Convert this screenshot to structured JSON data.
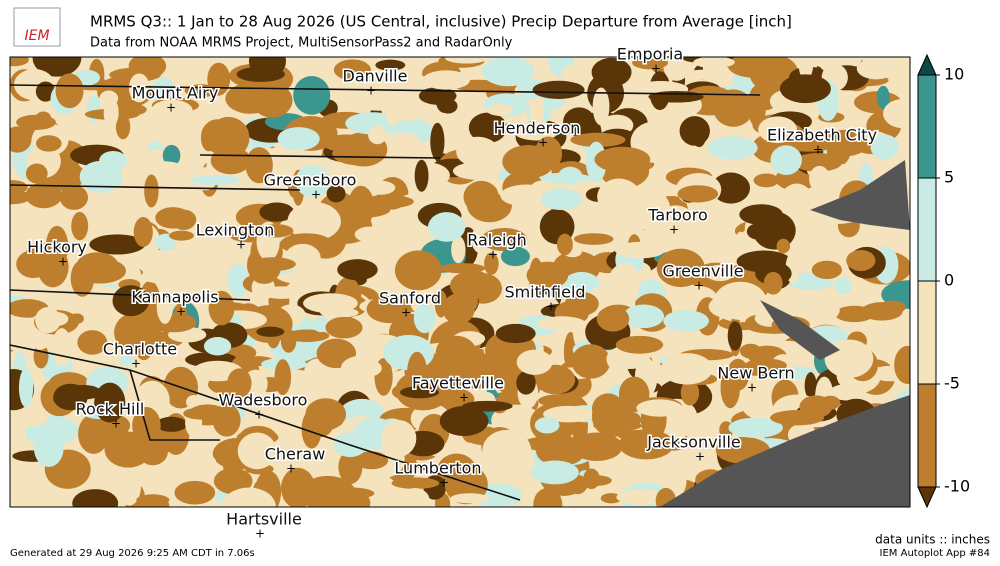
{
  "header": {
    "title": "MRMS Q3:: 1 Jan to 28 Aug 2026 (US Central, inclusive) Precip Departure from Average [inch]",
    "subtitle": "Data from NOAA MRMS Project, MultiSensorPass2 and RadarOnly",
    "logo": "IEM"
  },
  "cities": [
    "Danville",
    "Emporia",
    "Mount Airy",
    "Henderson",
    "Elizabeth City",
    "Greensboro",
    "Tarboro",
    "Lexington",
    "Raleigh",
    "Hickory",
    "Greenville",
    "Kannapolis",
    "Sanford",
    "Smithfield",
    "Charlotte",
    "Fayetteville",
    "New Bern",
    "Rock Hill",
    "Wadesboro",
    "Jacksonville",
    "Cheraw",
    "Lumberton",
    "Hartsville"
  ],
  "colorbar": {
    "ticks": [
      10,
      5,
      0,
      -5,
      -10
    ],
    "colors": [
      "#0d4a45",
      "#3a968e",
      "#c8ebe3",
      "#f5e3bd",
      "#bd7f2e",
      "#5a3508"
    ],
    "units": "data units :: inches"
  },
  "footer": {
    "generated": "Generated at 29 Aug 2026 9:25 AM CDT in 7.06s",
    "app": "IEM Autoplot App #84"
  }
}
